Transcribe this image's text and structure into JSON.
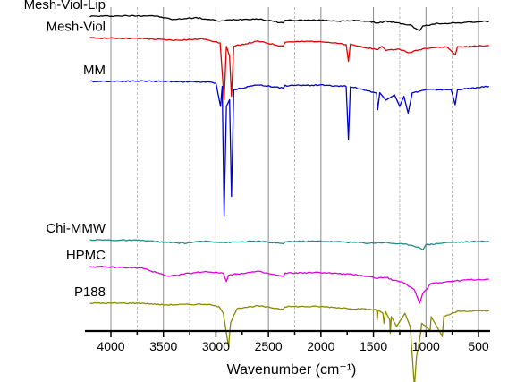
{
  "chart_data": {
    "type": "line",
    "title": "",
    "xlabel": "Wavenumber (cm⁻¹)",
    "ylabel": "",
    "x_reversed": true,
    "xlim": [
      4200,
      400
    ],
    "x_ticks": [
      4000,
      3500,
      3000,
      2500,
      2000,
      1500,
      1000,
      500
    ],
    "x_tick_labels": [
      "4000",
      "3500",
      "3000",
      "2500",
      "2000",
      "1500",
      "1000",
      "500"
    ],
    "major_gridlines": [
      4000,
      3500,
      3000,
      2500,
      2000,
      1500,
      1000,
      500
    ],
    "minor_gridlines": [
      3750,
      3250,
      2250,
      1250,
      750
    ],
    "grid": true,
    "legend": "inline-left",
    "series": [
      {
        "name": "Mesh-Viol-Lip",
        "color": "#000000",
        "baseline": 0.97,
        "points": [
          [
            4200,
            0.97
          ],
          [
            3600,
            0.972
          ],
          [
            3400,
            0.96
          ],
          [
            3200,
            0.966
          ],
          [
            2950,
            0.955
          ],
          [
            2850,
            0.96
          ],
          [
            2600,
            0.962
          ],
          [
            2360,
            0.95
          ],
          [
            2340,
            0.958
          ],
          [
            2000,
            0.958
          ],
          [
            1750,
            0.955
          ],
          [
            1650,
            0.958
          ],
          [
            1450,
            0.95
          ],
          [
            1380,
            0.955
          ],
          [
            1240,
            0.948
          ],
          [
            1150,
            0.944
          ],
          [
            1080,
            0.93
          ],
          [
            1060,
            0.927
          ],
          [
            1030,
            0.94
          ],
          [
            900,
            0.948
          ],
          [
            700,
            0.95
          ],
          [
            400,
            0.955
          ]
        ]
      },
      {
        "name": "Mesh-Viol",
        "color": "#e00000",
        "baseline": 0.905,
        "points": [
          [
            4200,
            0.905
          ],
          [
            3700,
            0.903
          ],
          [
            3400,
            0.898
          ],
          [
            3100,
            0.902
          ],
          [
            2960,
            0.89
          ],
          [
            2922,
            0.72
          ],
          [
            2900,
            0.88
          ],
          [
            2870,
            0.85
          ],
          [
            2852,
            0.73
          ],
          [
            2830,
            0.88
          ],
          [
            2600,
            0.895
          ],
          [
            2360,
            0.88
          ],
          [
            2340,
            0.893
          ],
          [
            2000,
            0.895
          ],
          [
            1760,
            0.885
          ],
          [
            1738,
            0.835
          ],
          [
            1720,
            0.885
          ],
          [
            1460,
            0.87
          ],
          [
            1420,
            0.88
          ],
          [
            1380,
            0.868
          ],
          [
            1250,
            0.872
          ],
          [
            1170,
            0.86
          ],
          [
            1080,
            0.868
          ],
          [
            1000,
            0.875
          ],
          [
            800,
            0.878
          ],
          [
            720,
            0.855
          ],
          [
            700,
            0.878
          ],
          [
            400,
            0.882
          ]
        ]
      },
      {
        "name": "MM",
        "color": "#0000d0",
        "baseline": 0.775,
        "points": [
          [
            4200,
            0.775
          ],
          [
            3700,
            0.776
          ],
          [
            3100,
            0.773
          ],
          [
            3000,
            0.77
          ],
          [
            2956,
            0.7
          ],
          [
            2940,
            0.76
          ],
          [
            2922,
            0.37
          ],
          [
            2900,
            0.7
          ],
          [
            2870,
            0.72
          ],
          [
            2852,
            0.43
          ],
          [
            2830,
            0.75
          ],
          [
            2600,
            0.765
          ],
          [
            2360,
            0.755
          ],
          [
            2340,
            0.762
          ],
          [
            2000,
            0.764
          ],
          [
            1760,
            0.76
          ],
          [
            1738,
            0.6
          ],
          [
            1720,
            0.76
          ],
          [
            1470,
            0.74
          ],
          [
            1460,
            0.69
          ],
          [
            1440,
            0.74
          ],
          [
            1380,
            0.72
          ],
          [
            1300,
            0.735
          ],
          [
            1250,
            0.7
          ],
          [
            1210,
            0.73
          ],
          [
            1170,
            0.68
          ],
          [
            1130,
            0.74
          ],
          [
            1000,
            0.75
          ],
          [
            760,
            0.75
          ],
          [
            722,
            0.705
          ],
          [
            700,
            0.75
          ],
          [
            400,
            0.76
          ]
        ]
      },
      {
        "name": "Chi-MMW",
        "color": "#1f8a8a",
        "baseline": 0.3,
        "points": [
          [
            4200,
            0.3
          ],
          [
            3700,
            0.298
          ],
          [
            3450,
            0.292
          ],
          [
            3300,
            0.29
          ],
          [
            3100,
            0.296
          ],
          [
            2900,
            0.292
          ],
          [
            2600,
            0.296
          ],
          [
            2360,
            0.288
          ],
          [
            2340,
            0.295
          ],
          [
            2000,
            0.296
          ],
          [
            1650,
            0.292
          ],
          [
            1550,
            0.29
          ],
          [
            1400,
            0.292
          ],
          [
            1150,
            0.285
          ],
          [
            1070,
            0.278
          ],
          [
            1030,
            0.27
          ],
          [
            1000,
            0.285
          ],
          [
            800,
            0.292
          ],
          [
            400,
            0.296
          ]
        ]
      },
      {
        "name": "HPMC",
        "color": "#e000e0",
        "baseline": 0.22,
        "points": [
          [
            4200,
            0.22
          ],
          [
            3700,
            0.215
          ],
          [
            3500,
            0.195
          ],
          [
            3450,
            0.19
          ],
          [
            3300,
            0.198
          ],
          [
            3100,
            0.205
          ],
          [
            2930,
            0.2
          ],
          [
            2900,
            0.175
          ],
          [
            2880,
            0.195
          ],
          [
            2600,
            0.205
          ],
          [
            2360,
            0.19
          ],
          [
            2340,
            0.2
          ],
          [
            2000,
            0.202
          ],
          [
            1650,
            0.195
          ],
          [
            1460,
            0.185
          ],
          [
            1380,
            0.188
          ],
          [
            1320,
            0.18
          ],
          [
            1200,
            0.17
          ],
          [
            1110,
            0.15
          ],
          [
            1060,
            0.11
          ],
          [
            1030,
            0.14
          ],
          [
            950,
            0.17
          ],
          [
            600,
            0.18
          ],
          [
            400,
            0.182
          ]
        ]
      },
      {
        "name": "P188",
        "color": "#8a8a00",
        "baseline": 0.11,
        "points": [
          [
            4200,
            0.11
          ],
          [
            3700,
            0.11
          ],
          [
            3500,
            0.105
          ],
          [
            3100,
            0.107
          ],
          [
            2970,
            0.1
          ],
          [
            2930,
            0.08
          ],
          [
            2880,
            -0.02
          ],
          [
            2860,
            0.05
          ],
          [
            2800,
            0.095
          ],
          [
            2600,
            0.102
          ],
          [
            2360,
            0.092
          ],
          [
            2340,
            0.1
          ],
          [
            2000,
            0.1
          ],
          [
            1750,
            0.095
          ],
          [
            1470,
            0.09
          ],
          [
            1465,
            0.06
          ],
          [
            1455,
            0.09
          ],
          [
            1410,
            0.08
          ],
          [
            1400,
            0.05
          ],
          [
            1385,
            0.085
          ],
          [
            1345,
            0.06
          ],
          [
            1340,
            0.02
          ],
          [
            1330,
            0.07
          ],
          [
            1280,
            0.04
          ],
          [
            1240,
            0.06
          ],
          [
            1200,
            0.08
          ],
          [
            1150,
            0.04
          ],
          [
            1110,
            -0.14
          ],
          [
            1090,
            -0.05
          ],
          [
            1060,
            0.0
          ],
          [
            1040,
            0.05
          ],
          [
            960,
            0.03
          ],
          [
            950,
            0.07
          ],
          [
            845,
            0.01
          ],
          [
            830,
            0.07
          ],
          [
            700,
            0.085
          ],
          [
            400,
            0.088
          ]
        ]
      }
    ]
  }
}
